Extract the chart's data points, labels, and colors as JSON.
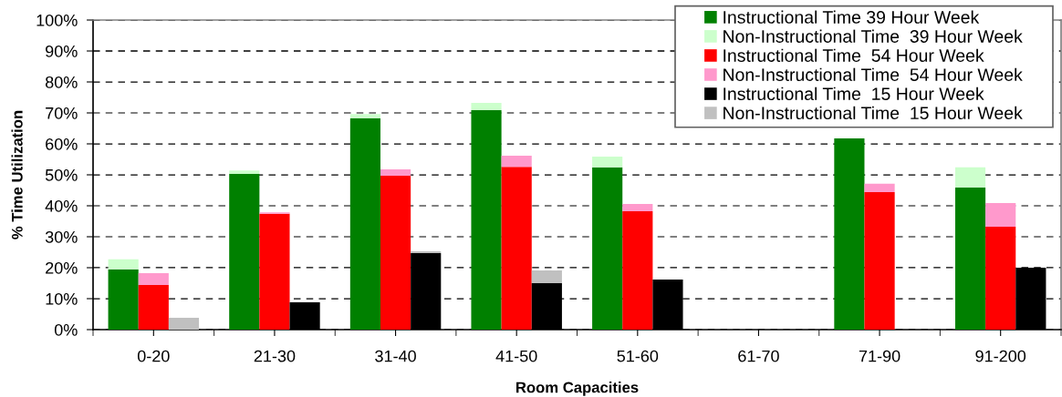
{
  "chart_data": {
    "type": "bar",
    "stacked": true,
    "xlabel": "Room Capacities",
    "ylabel": "% Time Utilization",
    "categories": [
      null,
      "0-20",
      null,
      null,
      null,
      "21-30",
      null,
      null,
      null,
      "31-40",
      null,
      null,
      null,
      "41-50",
      null,
      null,
      null,
      "51-60",
      null,
      null,
      null,
      "61-70",
      null,
      null,
      null,
      "71-90",
      null,
      null,
      null,
      "91-200",
      null,
      null
    ],
    "series": [
      {
        "name": "Instructional Time 39 Hour Week",
        "color": "#008000",
        "values": [
          19.5,
          null,
          null,
          null,
          50.3,
          null,
          null,
          null,
          68.2,
          null,
          null,
          null,
          70.9,
          null,
          null,
          null,
          52.4,
          null,
          null,
          null,
          null,
          null,
          null,
          null,
          61.8,
          null,
          null,
          null,
          45.9,
          null,
          null,
          null
        ]
      },
      {
        "name": "Non-Instructional Time  39 Hour Week",
        "color": "#ccffcc",
        "values": [
          3.2,
          null,
          null,
          null,
          1.1,
          null,
          null,
          null,
          1.4,
          null,
          null,
          null,
          2.3,
          null,
          null,
          null,
          3.5,
          null,
          null,
          null,
          null,
          null,
          null,
          null,
          null,
          null,
          null,
          null,
          6.5,
          null,
          null,
          null
        ]
      },
      {
        "name": "Instructional Time  54 Hour Week",
        "color": "#ff0000",
        "values": [
          null,
          14.4,
          null,
          null,
          null,
          37.4,
          null,
          null,
          null,
          49.7,
          null,
          null,
          null,
          52.6,
          null,
          null,
          null,
          38.2,
          null,
          null,
          null,
          null,
          null,
          null,
          null,
          44.4,
          null,
          null,
          null,
          33.2,
          null,
          null
        ]
      },
      {
        "name": "Non-Instructional Time  54 Hour Week",
        "color": "#ff99cc",
        "values": [
          null,
          3.8,
          null,
          null,
          null,
          0.5,
          null,
          null,
          null,
          2.1,
          null,
          null,
          null,
          3.6,
          null,
          null,
          null,
          2.4,
          null,
          null,
          null,
          null,
          null,
          null,
          null,
          2.7,
          null,
          null,
          null,
          7.7,
          null,
          null
        ]
      },
      {
        "name": "Instructional Time  15 Hour Week",
        "color": "#000000",
        "values": [
          null,
          null,
          null,
          null,
          null,
          null,
          8.8,
          null,
          null,
          null,
          24.7,
          null,
          null,
          null,
          15.0,
          null,
          null,
          null,
          16.2,
          null,
          null,
          null,
          null,
          null,
          null,
          null,
          null,
          null,
          null,
          null,
          20.0,
          null
        ]
      },
      {
        "name": "Non-Instructional Time  15 Hour Week",
        "color": "#c0c0c0",
        "values": [
          null,
          null,
          3.8,
          null,
          null,
          null,
          null,
          null,
          null,
          null,
          0.6,
          null,
          null,
          null,
          4.1,
          null,
          null,
          null,
          null,
          null,
          null,
          null,
          null,
          null,
          null,
          null,
          null,
          null,
          null,
          null,
          null,
          null
        ]
      }
    ],
    "ylim": [
      0,
      100
    ],
    "yticks": [
      {
        "value": 0,
        "label": "0%"
      },
      {
        "value": 10,
        "label": "10%"
      },
      {
        "value": 20,
        "label": "20%"
      },
      {
        "value": 30,
        "label": "30%"
      },
      {
        "value": 40,
        "label": "40%"
      },
      {
        "value": 50,
        "label": "50%"
      },
      {
        "value": 60,
        "label": "60%"
      },
      {
        "value": 70,
        "label": "70%"
      },
      {
        "value": 80,
        "label": "80%"
      },
      {
        "value": 90,
        "label": "90%"
      },
      {
        "value": 100,
        "label": "100%"
      }
    ],
    "grid": "y",
    "legend": "top right"
  }
}
